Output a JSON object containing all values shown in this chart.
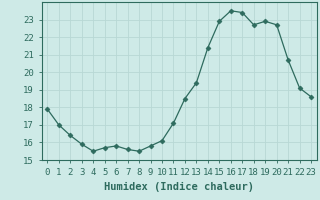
{
  "x": [
    0,
    1,
    2,
    3,
    4,
    5,
    6,
    7,
    8,
    9,
    10,
    11,
    12,
    13,
    14,
    15,
    16,
    17,
    18,
    19,
    20,
    21,
    22,
    23
  ],
  "y": [
    17.9,
    17.0,
    16.4,
    15.9,
    15.5,
    15.7,
    15.8,
    15.6,
    15.5,
    15.8,
    16.1,
    17.1,
    18.5,
    19.4,
    21.4,
    22.9,
    23.5,
    23.4,
    22.7,
    22.9,
    22.7,
    20.7,
    19.1,
    18.6
  ],
  "line_color": "#2e6b5e",
  "marker": "D",
  "marker_size": 2.5,
  "bg_color": "#ceeae7",
  "grid_color": "#b8d8d5",
  "xlabel": "Humidex (Indice chaleur)",
  "ylim": [
    15,
    24
  ],
  "xlim": [
    -0.5,
    23.5
  ],
  "yticks": [
    15,
    16,
    17,
    18,
    19,
    20,
    21,
    22,
    23
  ],
  "xticks": [
    0,
    1,
    2,
    3,
    4,
    5,
    6,
    7,
    8,
    9,
    10,
    11,
    12,
    13,
    14,
    15,
    16,
    17,
    18,
    19,
    20,
    21,
    22,
    23
  ],
  "tick_label_fontsize": 6.5,
  "xlabel_fontsize": 7.5
}
